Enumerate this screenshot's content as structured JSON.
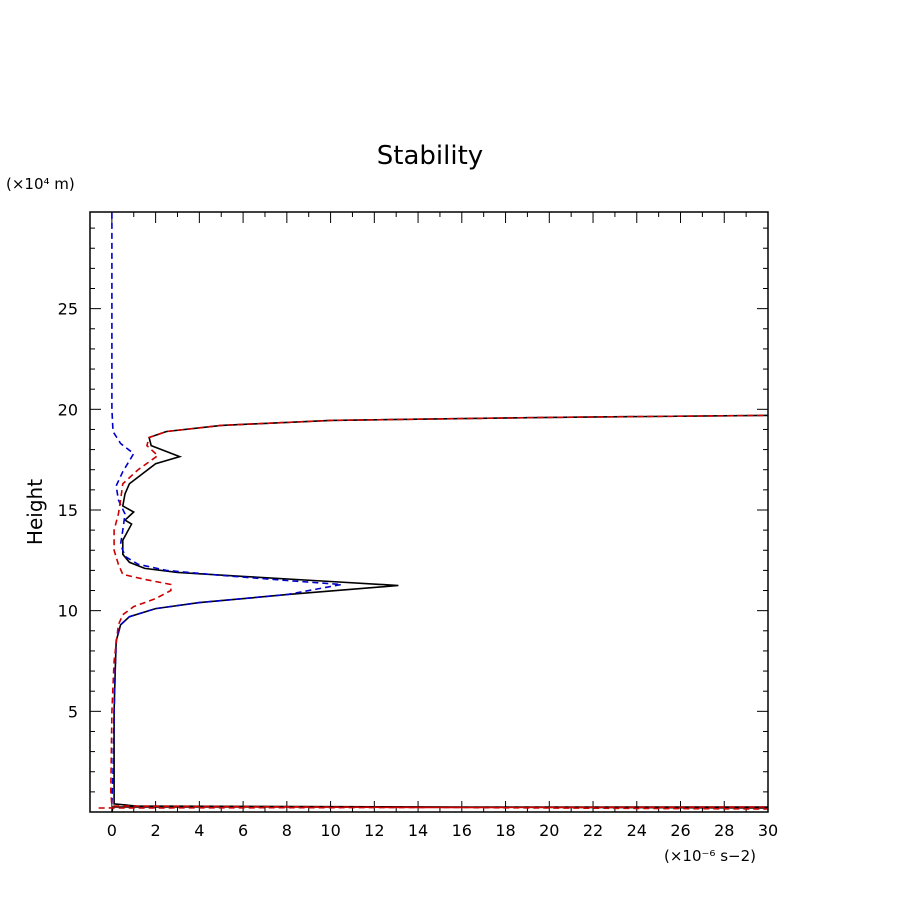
{
  "chart_data": {
    "type": "line",
    "title": "Stability",
    "ylabel": "Height",
    "xlabel": "",
    "y_unit_label": "(×10⁴ m)",
    "x_unit_label": "(×10⁻⁶ s−2)",
    "xlim": [
      -1,
      30
    ],
    "ylim": [
      0,
      29.8
    ],
    "x_ticks": [
      0,
      2,
      4,
      6,
      8,
      10,
      12,
      14,
      16,
      18,
      20,
      22,
      24,
      26,
      28,
      30
    ],
    "y_ticks": [
      5,
      10,
      15,
      20,
      25
    ],
    "grid": false,
    "legend": "none",
    "series": [
      {
        "color": "#000000",
        "dash": "solid",
        "points": [
          [
            0.0,
            0.0
          ],
          [
            0.05,
            0.25
          ],
          [
            30,
            0.25
          ],
          [
            30,
            0.2
          ],
          [
            1.1,
            0.3
          ],
          [
            0.1,
            0.4
          ],
          [
            0.1,
            2
          ],
          [
            0.1,
            5
          ],
          [
            0.15,
            7
          ],
          [
            0.2,
            8.5
          ],
          [
            0.4,
            9.3
          ],
          [
            0.8,
            9.7
          ],
          [
            2,
            10.1
          ],
          [
            4,
            10.4
          ],
          [
            8,
            10.8
          ],
          [
            13.1,
            11.25
          ],
          [
            10,
            11.45
          ],
          [
            6,
            11.7
          ],
          [
            3,
            11.9
          ],
          [
            1.5,
            12.1
          ],
          [
            0.8,
            12.4
          ],
          [
            0.5,
            12.8
          ],
          [
            0.5,
            13.5
          ],
          [
            0.9,
            14.3
          ],
          [
            0.6,
            14.5
          ],
          [
            1.0,
            14.9
          ],
          [
            0.5,
            15.2
          ],
          [
            0.6,
            15.8
          ],
          [
            0.8,
            16.3
          ],
          [
            1.4,
            16.8
          ],
          [
            2.0,
            17.3
          ],
          [
            3.1,
            17.65
          ],
          [
            1.8,
            18.2
          ],
          [
            1.7,
            18.6
          ],
          [
            2.5,
            18.9
          ],
          [
            5,
            19.2
          ],
          [
            10,
            19.45
          ],
          [
            20,
            19.6
          ],
          [
            30,
            19.7
          ]
        ]
      },
      {
        "color": "#0000cc",
        "dash": "dashed",
        "points": [
          [
            0.0,
            0.4
          ],
          [
            0.05,
            2
          ],
          [
            0.1,
            5
          ],
          [
            0.15,
            7
          ],
          [
            0.2,
            8.5
          ],
          [
            0.4,
            9.3
          ],
          [
            0.8,
            9.7
          ],
          [
            2,
            10.1
          ],
          [
            4,
            10.4
          ],
          [
            8,
            10.8
          ],
          [
            10.5,
            11.3
          ],
          [
            8,
            11.5
          ],
          [
            5,
            11.75
          ],
          [
            2.5,
            12.0
          ],
          [
            1.2,
            12.3
          ],
          [
            0.6,
            12.7
          ],
          [
            0.4,
            13.3
          ],
          [
            0.5,
            14.0
          ],
          [
            0.6,
            14.8
          ],
          [
            0.3,
            15.5
          ],
          [
            0.2,
            16.2
          ],
          [
            0.5,
            16.9
          ],
          [
            1.0,
            17.8
          ],
          [
            0.4,
            18.3
          ],
          [
            0.05,
            18.9
          ],
          [
            0.0,
            20
          ],
          [
            0.0,
            25
          ],
          [
            0.0,
            29.8
          ]
        ]
      },
      {
        "color": "#cc0000",
        "dash": "dashed",
        "points": [
          [
            -0.6,
            0.2
          ],
          [
            30,
            0.25
          ],
          [
            30,
            0.15
          ],
          [
            0.0,
            0.3
          ],
          [
            -0.05,
            1
          ],
          [
            0.0,
            5
          ],
          [
            0.1,
            7.5
          ],
          [
            0.3,
            9.3
          ],
          [
            0.5,
            9.8
          ],
          [
            1,
            10.2
          ],
          [
            2,
            10.6
          ],
          [
            2.7,
            11.0
          ],
          [
            2.7,
            11.3
          ],
          [
            1.5,
            11.55
          ],
          [
            0.5,
            11.8
          ],
          [
            0.3,
            12.3
          ],
          [
            0.1,
            13.0
          ],
          [
            0.1,
            14.0
          ],
          [
            0.3,
            14.8
          ],
          [
            0.4,
            15.5
          ],
          [
            0.5,
            16.3
          ],
          [
            1.2,
            17.0
          ],
          [
            2.1,
            17.7
          ],
          [
            1.6,
            18.2
          ],
          [
            1.7,
            18.6
          ],
          [
            2.5,
            18.9
          ],
          [
            5,
            19.2
          ],
          [
            10,
            19.45
          ],
          [
            20,
            19.6
          ],
          [
            30,
            19.7
          ]
        ]
      }
    ]
  }
}
